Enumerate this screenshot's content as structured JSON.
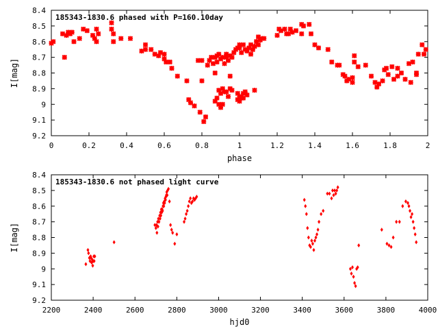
{
  "chart_data": [
    {
      "type": "scatter",
      "title": "185343-1830.6 phased with P=160.10day",
      "xlabel": "phase",
      "ylabel": "I[mag]",
      "xlim": [
        0,
        2
      ],
      "ylim": [
        8.4,
        9.2
      ],
      "y_inverted": true,
      "x_ticks": [
        0,
        0.2,
        0.4,
        0.6,
        0.8,
        1,
        1.2,
        1.4,
        1.6,
        1.8,
        2
      ],
      "x_tick_labels": [
        "0",
        "0.2",
        "0.4",
        "0.6",
        "0.8",
        "1",
        "1.2",
        "1.4",
        "1.6",
        "1.8",
        "2"
      ],
      "y_ticks": [
        8.4,
        8.5,
        8.6,
        8.7,
        8.8,
        8.9,
        9,
        9.1,
        9.2
      ],
      "y_tick_labels": [
        "8.4",
        "8.5",
        "8.6",
        "8.7",
        "8.8",
        "8.9",
        "9",
        "9.1",
        "9.2"
      ],
      "marker": "cross",
      "color": "#ff0000",
      "series": [
        {
          "x": [
            0.0,
            0.01,
            0.06,
            0.07,
            0.08,
            0.09,
            0.1,
            0.11,
            0.12,
            0.15,
            0.17,
            0.19,
            0.22,
            0.23,
            0.24,
            0.24,
            0.25,
            0.32,
            0.32,
            0.33,
            0.33,
            0.37,
            0.42,
            0.48,
            0.5,
            0.5,
            0.53,
            0.55,
            0.57,
            0.58,
            0.6,
            0.6,
            0.61,
            0.63,
            0.64,
            0.67,
            0.72,
            0.73,
            0.74,
            0.76,
            0.78,
            0.79,
            0.8,
            0.8,
            0.81,
            0.82,
            0.83,
            0.84,
            0.85,
            0.86,
            0.87,
            0.88,
            0.88,
            0.89,
            0.9,
            0.91,
            0.92,
            0.93,
            0.93,
            0.94,
            0.95,
            0.96,
            0.97,
            0.98,
            0.99,
            1.0,
            1.0,
            1.01,
            1.02,
            1.03,
            1.04,
            1.05,
            1.06,
            1.07,
            1.08,
            1.09,
            1.1,
            1.11,
            1.12,
            1.13,
            1.06,
            1.07,
            1.08,
            1.09,
            1.1,
            0.87,
            0.88,
            0.89,
            0.9,
            0.91,
            0.92,
            0.93,
            0.94,
            0.95,
            0.96,
            0.87,
            0.89,
            0.9,
            0.91,
            0.99,
            1.0,
            1.01,
            1.02,
            1.03,
            1.04,
            1.08,
            0.99,
            1.0,
            1.01,
            1.02,
            0.95,
            1.2,
            1.21,
            1.22,
            1.24,
            1.25,
            1.26,
            1.27,
            1.28,
            1.3,
            1.33,
            1.33,
            1.34,
            1.37,
            1.38,
            1.4,
            1.42,
            1.47,
            1.49,
            1.52,
            1.53,
            1.55,
            1.56,
            1.57,
            1.58,
            1.6,
            1.6,
            1.61,
            1.61,
            1.63,
            1.67,
            1.7,
            1.72,
            1.73,
            1.74,
            1.76,
            1.77,
            1.78,
            1.79,
            1.81,
            1.82,
            1.84,
            1.84,
            1.86,
            1.88,
            1.9,
            1.91,
            1.92,
            1.94,
            1.94,
            1.95,
            1.97,
            1.98,
            1.99
          ],
          "y": [
            8.61,
            8.6,
            8.55,
            8.7,
            8.56,
            8.54,
            8.55,
            8.54,
            8.6,
            8.58,
            8.52,
            8.53,
            8.56,
            8.58,
            8.52,
            8.6,
            8.55,
            8.48,
            8.52,
            8.55,
            8.6,
            8.58,
            8.58,
            8.66,
            8.62,
            8.65,
            8.65,
            8.68,
            8.69,
            8.67,
            8.68,
            8.71,
            8.73,
            8.73,
            8.77,
            8.82,
            8.85,
            8.97,
            8.99,
            9.01,
            8.72,
            9.05,
            8.72,
            8.85,
            9.11,
            9.08,
            8.75,
            8.72,
            8.7,
            8.74,
            8.7,
            8.73,
            8.69,
            8.68,
            8.71,
            8.7,
            8.74,
            8.7,
            8.68,
            8.72,
            8.69,
            8.7,
            8.67,
            8.65,
            8.64,
            8.62,
            8.64,
            8.67,
            8.62,
            8.65,
            8.66,
            8.64,
            8.62,
            8.65,
            8.63,
            8.6,
            8.62,
            8.59,
            8.58,
            8.58,
            8.68,
            8.65,
            8.63,
            8.6,
            8.57,
            8.98,
            8.96,
            8.91,
            8.93,
            8.9,
            8.92,
            8.92,
            8.95,
            8.9,
            8.91,
            8.8,
            9.0,
            9.02,
            9.0,
            8.93,
            8.95,
            8.96,
            8.93,
            8.92,
            8.94,
            8.91,
            8.97,
            8.98,
            8.95,
            8.96,
            8.82,
            8.56,
            8.52,
            8.53,
            8.52,
            8.55,
            8.55,
            8.52,
            8.54,
            8.53,
            8.49,
            8.55,
            8.5,
            8.49,
            8.55,
            8.62,
            8.64,
            8.65,
            8.73,
            8.75,
            8.75,
            8.81,
            8.82,
            8.85,
            8.84,
            8.83,
            8.86,
            8.69,
            8.73,
            8.76,
            8.75,
            8.82,
            8.86,
            8.89,
            8.87,
            8.85,
            8.78,
            8.77,
            8.81,
            8.76,
            8.84,
            8.77,
            8.82,
            8.8,
            8.84,
            8.74,
            8.86,
            8.73,
            8.8,
            8.81,
            8.68,
            8.62,
            8.68,
            8.65
          ]
        }
      ]
    },
    {
      "type": "scatter",
      "title": "185343-1830.6 not phased light curve",
      "xlabel": "hjd0",
      "ylabel": "I[mag]",
      "xlim": [
        2200,
        4000
      ],
      "ylim": [
        8.4,
        9.2
      ],
      "y_inverted": true,
      "x_ticks": [
        2200,
        2400,
        2600,
        2800,
        3000,
        3200,
        3400,
        3600,
        3800,
        4000
      ],
      "x_tick_labels": [
        "2200",
        "2400",
        "2600",
        "2800",
        "3000",
        "3200",
        "3400",
        "3600",
        "3800",
        "4000"
      ],
      "y_ticks": [
        8.4,
        8.5,
        8.6,
        8.7,
        8.8,
        8.9,
        9,
        9.1,
        9.2
      ],
      "y_tick_labels": [
        "8.4",
        "8.5",
        "8.6",
        "8.7",
        "8.8",
        "8.9",
        "9",
        "9.1",
        "9.2"
      ],
      "marker": "diamond",
      "color": "#ff0000",
      "series": [
        {
          "x": [
            2365,
            2375,
            2378,
            2382,
            2385,
            2388,
            2390,
            2393,
            2395,
            2398,
            2400,
            2403,
            2405,
            2408,
            2500,
            2695,
            2700,
            2703,
            2705,
            2708,
            2710,
            2712,
            2715,
            2718,
            2720,
            2722,
            2724,
            2726,
            2728,
            2730,
            2732,
            2734,
            2736,
            2738,
            2740,
            2742,
            2744,
            2746,
            2748,
            2750,
            2752,
            2754,
            2756,
            2760,
            2765,
            2770,
            2775,
            2780,
            2790,
            2800,
            2835,
            2840,
            2845,
            2850,
            2855,
            2860,
            2865,
            2870,
            2875,
            2880,
            2885,
            2890,
            2895,
            3410,
            3415,
            3420,
            3425,
            3430,
            3435,
            3440,
            3445,
            3450,
            3455,
            3460,
            3465,
            3470,
            3475,
            3480,
            3490,
            3500,
            3520,
            3530,
            3540,
            3545,
            3550,
            3555,
            3560,
            3565,
            3570,
            3630,
            3635,
            3640,
            3645,
            3650,
            3655,
            3660,
            3665,
            3670,
            3780,
            3805,
            3815,
            3825,
            3835,
            3850,
            3865,
            3880,
            3895,
            3905,
            3910,
            3915,
            3920,
            3925,
            3930,
            3935,
            3940,
            3945
          ],
          "y": [
            8.97,
            8.88,
            8.9,
            8.93,
            8.95,
            8.92,
            8.93,
            8.96,
            8.94,
            8.98,
            8.95,
            8.92,
            8.95,
            8.92,
            8.83,
            8.72,
            8.74,
            8.72,
            8.77,
            8.7,
            8.73,
            8.68,
            8.7,
            8.66,
            8.68,
            8.64,
            8.66,
            8.62,
            8.64,
            8.62,
            8.63,
            8.6,
            8.58,
            8.6,
            8.57,
            8.58,
            8.55,
            8.56,
            8.54,
            8.53,
            8.51,
            8.53,
            8.5,
            8.49,
            8.57,
            8.72,
            8.75,
            8.77,
            8.84,
            8.78,
            8.7,
            8.68,
            8.65,
            8.63,
            8.6,
            8.57,
            8.55,
            8.58,
            8.57,
            8.55,
            8.56,
            8.55,
            8.54,
            8.56,
            8.6,
            8.65,
            8.74,
            8.8,
            8.85,
            8.86,
            8.82,
            8.84,
            8.88,
            8.82,
            8.8,
            8.78,
            8.75,
            8.7,
            8.65,
            8.63,
            8.52,
            8.52,
            8.55,
            8.5,
            8.53,
            8.5,
            8.52,
            8.5,
            8.48,
            9.0,
            9.03,
            8.99,
            9.05,
            9.09,
            9.11,
            9.0,
            8.99,
            8.85,
            8.75,
            8.84,
            8.85,
            8.86,
            8.8,
            8.7,
            8.7,
            8.6,
            8.57,
            8.58,
            8.6,
            8.63,
            8.67,
            8.65,
            8.7,
            8.74,
            8.78,
            8.83
          ]
        }
      ]
    }
  ]
}
